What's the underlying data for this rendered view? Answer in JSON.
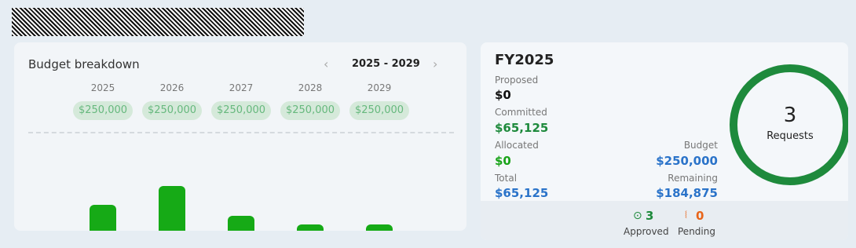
{
  "budget_breakdown": {
    "title": "Budget breakdown",
    "range": "2025 - 2029",
    "years": [
      "2025",
      "2026",
      "2027",
      "2028",
      "2029"
    ],
    "amounts": [
      "$250,000",
      "$250,000",
      "$250,000",
      "$250,000",
      "$250,000"
    ],
    "bars": [
      33,
      57,
      19,
      8,
      8
    ]
  },
  "fy_summary": {
    "title": "FY2025",
    "items": [
      {
        "label": "Proposed",
        "value": "$0"
      },
      {
        "label": "Committed",
        "value": "$65,125"
      },
      {
        "label": "Allocated",
        "value": "$0"
      },
      {
        "label": "Budget",
        "value": "$250,000"
      },
      {
        "label": "Total",
        "value": "$65,125"
      },
      {
        "label": "Remaining",
        "value": "$184,875"
      }
    ],
    "requests": {
      "count": 3,
      "label": "Requests"
    },
    "status": [
      {
        "count": 3,
        "label": "Approved"
      },
      {
        "count": 0,
        "label": "Pending"
      }
    ]
  }
}
